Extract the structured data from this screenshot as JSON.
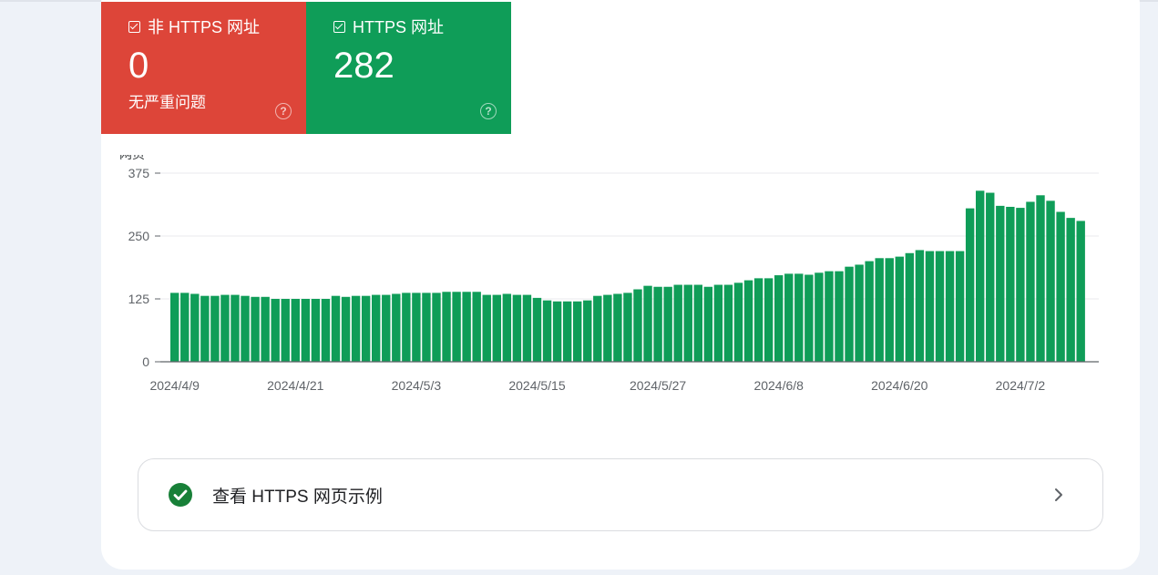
{
  "tiles": [
    {
      "label": "非 HTTPS 网址",
      "value": "0",
      "subtitle": "无严重问题",
      "color": "#dd4539"
    },
    {
      "label": "HTTPS 网址",
      "value": "282",
      "subtitle": "",
      "color": "#0f9d58"
    }
  ],
  "chart_data": {
    "type": "bar",
    "ylabel": "网页",
    "yticks": [
      0,
      125,
      250,
      375
    ],
    "ylim": [
      0,
      375
    ],
    "x_tick_labels": [
      "2024/4/9",
      "2024/4/21",
      "2024/5/3",
      "2024/5/15",
      "2024/5/27",
      "2024/6/8",
      "2024/6/20",
      "2024/7/2"
    ],
    "bar_color": "#0f9d58",
    "grid": true,
    "values": [
      137,
      137,
      135,
      131,
      131,
      133,
      133,
      131,
      129,
      129,
      125,
      125,
      125,
      125,
      125,
      125,
      131,
      129,
      131,
      131,
      133,
      133,
      135,
      137,
      137,
      137,
      137,
      139,
      139,
      139,
      139,
      133,
      133,
      135,
      133,
      133,
      127,
      122,
      120,
      120,
      120,
      122,
      131,
      133,
      135,
      137,
      144,
      151,
      149,
      149,
      153,
      153,
      153,
      149,
      153,
      153,
      157,
      162,
      166,
      166,
      172,
      175,
      175,
      173,
      177,
      180,
      180,
      189,
      193,
      200,
      206,
      206,
      209,
      216,
      222,
      220,
      220,
      220,
      220,
      305,
      340,
      336,
      310,
      308,
      306,
      318,
      331,
      320,
      298,
      286,
      280
    ]
  },
  "link_card": {
    "label": "查看 HTTPS 网页示例",
    "icon": "check-circle-icon",
    "chevron": "chevron-right-icon"
  }
}
